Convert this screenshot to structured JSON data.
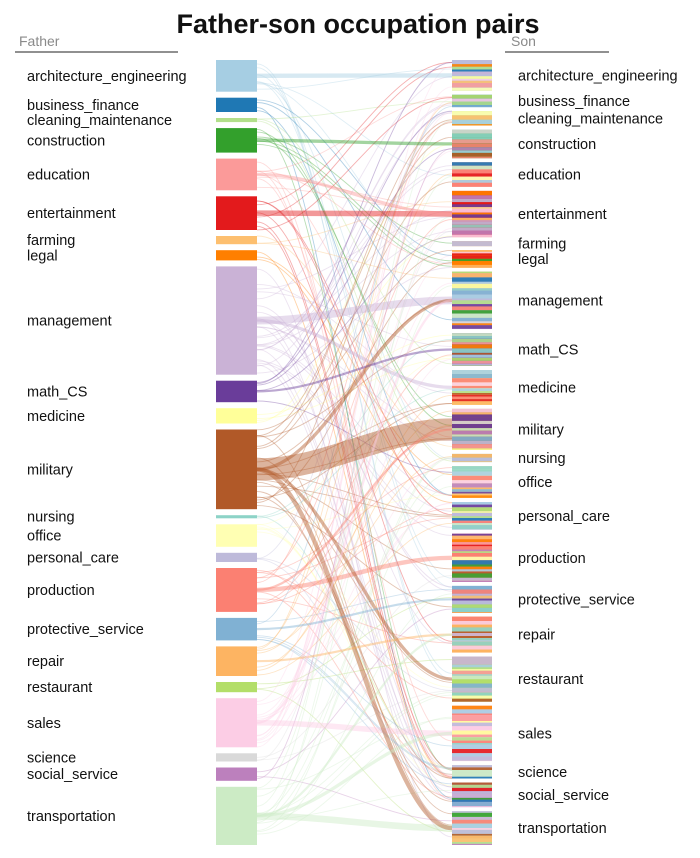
{
  "title": "Father-son occupation pairs",
  "father_header": "Father",
  "son_header": "Son",
  "colors": {
    "architecture_engineering": "#a6cee3",
    "business_finance": "#1f78b4",
    "cleaning_maintenance": "#b2df8a",
    "construction": "#33a02c",
    "education": "#fb9a99",
    "entertainment": "#e31a1c",
    "farming": "#fdbf6f",
    "legal": "#ff7f00",
    "management": "#cab2d6",
    "math_CS": "#6a3d9a",
    "medicine": "#ffff99",
    "military": "#b15928",
    "nursing": "#8dd3c7",
    "office": "#ffffb3",
    "personal_care": "#bebada",
    "production": "#fb8072",
    "protective_service": "#80b1d3",
    "repair": "#fdb462",
    "restaurant": "#b3de69",
    "sales": "#fccde5",
    "science": "#d9d9d9",
    "social_service": "#bc80bd",
    "transportation": "#ccebc5"
  },
  "father": [
    {
      "name": "architecture_engineering",
      "value": 31
    },
    {
      "name": "business_finance",
      "value": 14
    },
    {
      "name": "cleaning_maintenance",
      "value": 4
    },
    {
      "name": "construction",
      "value": 24
    },
    {
      "name": "education",
      "value": 31
    },
    {
      "name": "entertainment",
      "value": 33
    },
    {
      "name": "farming",
      "value": 8
    },
    {
      "name": "legal",
      "value": 10
    },
    {
      "name": "management",
      "value": 106
    },
    {
      "name": "math_CS",
      "value": 21
    },
    {
      "name": "medicine",
      "value": 15
    },
    {
      "name": "military",
      "value": 78
    },
    {
      "name": "nursing",
      "value": 3
    },
    {
      "name": "office",
      "value": 22
    },
    {
      "name": "personal_care",
      "value": 9
    },
    {
      "name": "production",
      "value": 43
    },
    {
      "name": "protective_service",
      "value": 22
    },
    {
      "name": "repair",
      "value": 29
    },
    {
      "name": "restaurant",
      "value": 10
    },
    {
      "name": "sales",
      "value": 48
    },
    {
      "name": "science",
      "value": 8
    },
    {
      "name": "social_service",
      "value": 13
    },
    {
      "name": "transportation",
      "value": 57
    }
  ],
  "son": [
    {
      "name": "architecture_engineering",
      "value": 30
    },
    {
      "name": "business_finance",
      "value": 12
    },
    {
      "name": "cleaning_maintenance",
      "value": 14
    },
    {
      "name": "construction",
      "value": 28
    },
    {
      "name": "education",
      "value": 24
    },
    {
      "name": "entertainment",
      "value": 45
    },
    {
      "name": "farming",
      "value": 5
    },
    {
      "name": "legal",
      "value": 17
    },
    {
      "name": "management",
      "value": 56
    },
    {
      "name": "math_CS",
      "value": 32
    },
    {
      "name": "medicine",
      "value": 34
    },
    {
      "name": "military",
      "value": 40
    },
    {
      "name": "nursing",
      "value": 8
    },
    {
      "name": "office",
      "value": 31
    },
    {
      "name": "personal_care",
      "value": 27
    },
    {
      "name": "production",
      "value": 47
    },
    {
      "name": "protective_service",
      "value": 26
    },
    {
      "name": "repair",
      "value": 35
    },
    {
      "name": "restaurant",
      "value": 44
    },
    {
      "name": "sales",
      "value": 54
    },
    {
      "name": "science",
      "value": 13
    },
    {
      "name": "social_service",
      "value": 24
    },
    {
      "name": "transportation",
      "value": 33
    }
  ],
  "strong_links": [
    {
      "from": "military",
      "to": "military",
      "value": 20
    },
    {
      "from": "management",
      "to": "management",
      "value": 7
    },
    {
      "from": "transportation",
      "to": "transportation",
      "value": 6
    },
    {
      "from": "entertainment",
      "to": "entertainment",
      "value": 5
    },
    {
      "from": "sales",
      "to": "sales",
      "value": 5
    },
    {
      "from": "production",
      "to": "production",
      "value": 4
    },
    {
      "from": "architecture_engineering",
      "to": "architecture_engineering",
      "value": 4
    },
    {
      "from": "military",
      "to": "transportation",
      "value": 4
    },
    {
      "from": "military",
      "to": "restaurant",
      "value": 3
    },
    {
      "from": "military",
      "to": "management",
      "value": 3
    },
    {
      "from": "management",
      "to": "medicine",
      "value": 3
    },
    {
      "from": "education",
      "to": "entertainment",
      "value": 3
    },
    {
      "from": "construction",
      "to": "construction",
      "value": 3
    },
    {
      "from": "transportation",
      "to": "sales",
      "value": 3
    },
    {
      "from": "repair",
      "to": "repair",
      "value": 2
    },
    {
      "from": "sales",
      "to": "management",
      "value": 2
    },
    {
      "from": "protective_service",
      "to": "protective_service",
      "value": 2
    },
    {
      "from": "math_CS",
      "to": "math_CS",
      "value": 2
    },
    {
      "from": "production",
      "to": "military",
      "value": 2
    },
    {
      "from": "transportation",
      "to": "repair",
      "value": 2
    }
  ]
}
